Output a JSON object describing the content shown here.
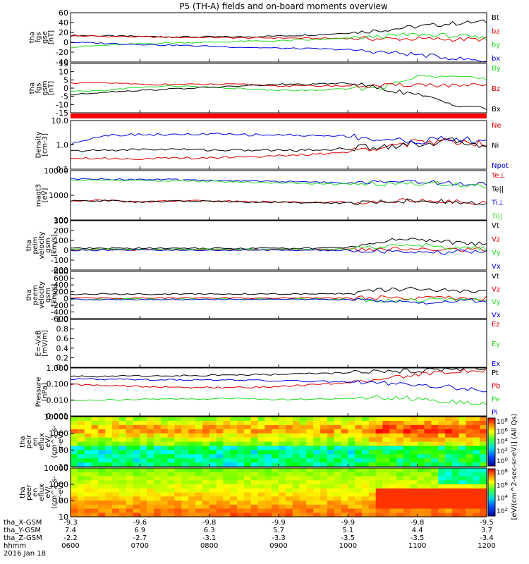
{
  "title": "P5 (TH-A) fields and on-board moments overview",
  "colors": {
    "black": "#000000",
    "red": "#dd0000",
    "green": "#22dd22",
    "blue": "#0000dd"
  },
  "time_ticks": [
    "0600",
    "0700",
    "0800",
    "0900",
    "1000",
    "1100",
    "1200"
  ],
  "date_label": "2016 Jan 18",
  "ephemeris": [
    {
      "label": "tha_X-GSM",
      "values": [
        "-9.3",
        "-9.6",
        "-9.8",
        "-9.9",
        "-9.9",
        "-9.8",
        "-9.5"
      ]
    },
    {
      "label": "tha_Y-GSM",
      "values": [
        "7.4",
        "6.9",
        "6.3",
        "5.7",
        "5.1",
        "4.4",
        "3.7"
      ]
    },
    {
      "label": "tha_Z-GSM",
      "values": [
        "-2.2",
        "-2.7",
        "-3.1",
        "-3.3",
        "-3.5",
        "-3.5",
        "-3.4"
      ]
    },
    {
      "label": "hhmm",
      "values": []
    }
  ],
  "colorbar": {
    "label": "[eV/(cm^2-sec-sr-eV)] (All Qs)",
    "ticks_top": [
      "10^8",
      "10^6",
      "10^4",
      "10^2",
      "10^0"
    ],
    "ticks_bottom": [
      "10^8",
      "10^6",
      "10^4",
      "10^2"
    ]
  },
  "chart_data": [
    {
      "type": "line",
      "ylabel": [
        "tha",
        "fgs",
        "gse",
        "[nT]"
      ],
      "ylim": [
        -40,
        60
      ],
      "yticks": [
        "60",
        "40",
        "20",
        "0",
        "-20",
        "-40"
      ],
      "legend_placement": "right",
      "series": [
        {
          "name": "Bt",
          "color": "black",
          "values": [
            14,
            13,
            12,
            11,
            11,
            11,
            13,
            15,
            19,
            25,
            32,
            38,
            42
          ]
        },
        {
          "name": "bz",
          "color": "red",
          "values": [
            13,
            12,
            11,
            10,
            10,
            9,
            9,
            8,
            8,
            7,
            7,
            6,
            6
          ]
        },
        {
          "name": "by",
          "color": "green",
          "values": [
            -10,
            -6,
            -3,
            -1,
            0,
            2,
            3,
            5,
            8,
            12,
            16,
            13,
            8
          ]
        },
        {
          "name": "bx",
          "color": "blue",
          "values": [
            0,
            -2,
            -4,
            -6,
            -8,
            -10,
            -12,
            -13,
            -15,
            -20,
            -25,
            -32,
            -38
          ]
        }
      ]
    },
    {
      "type": "line",
      "ylabel": [
        "tha",
        "fgs",
        "gsm",
        "[nT]"
      ],
      "ylim": [
        -18,
        15
      ],
      "yticks": [
        "15",
        "10",
        "5",
        "0",
        "-5",
        "-10",
        "-15"
      ],
      "legend_placement": "right",
      "series": [
        {
          "name": "By",
          "color": "green",
          "values": [
            -4,
            -3,
            -1,
            0,
            -1,
            -2,
            -3,
            -3,
            -2,
            -1,
            6,
            8,
            4
          ]
        },
        {
          "name": "Bz",
          "color": "red",
          "values": [
            2,
            2,
            1,
            1,
            1,
            1,
            0,
            0,
            0,
            0,
            1,
            0,
            0
          ]
        },
        {
          "name": "Bx",
          "color": "black",
          "values": [
            -6,
            -4,
            -3,
            -2,
            -1,
            0,
            1,
            1,
            2,
            -2,
            -6,
            -12,
            -15
          ]
        }
      ]
    },
    {
      "type": "line",
      "ylabel": [
        "Density",
        "[cm-3]"
      ],
      "ylim": [
        0.1,
        10
      ],
      "log": true,
      "yticks": [
        "10.0",
        "1.0",
        "0.1"
      ],
      "legend_placement": "right",
      "series": [
        {
          "name": "Ne",
          "color": "red",
          "values": [
            0.3,
            0.28,
            0.27,
            0.28,
            0.3,
            0.33,
            0.35,
            0.4,
            0.5,
            0.9,
            1.2,
            1.5,
            1.1
          ]
        },
        {
          "name": "Ni",
          "color": "black",
          "values": [
            0.55,
            0.6,
            0.65,
            0.66,
            0.62,
            0.6,
            0.6,
            0.62,
            0.7,
            0.9,
            1.1,
            1.4,
            1.0
          ]
        },
        {
          "name": "Npot",
          "color": "blue",
          "values": [
            1.0,
            2.5,
            2.7,
            2.6,
            2.8,
            2.6,
            2.6,
            2.4,
            2.3,
            1.6,
            1.4,
            1.8,
            1.3
          ]
        }
      ]
    },
    {
      "type": "line",
      "ylabel": [
        "magt3",
        "[eV]"
      ],
      "ylim": [
        10,
        10000
      ],
      "log": true,
      "yticks": [
        "10000",
        "1000",
        "100"
      ],
      "legend_placement": "right",
      "series": [
        {
          "name": "Te⊥",
          "color": "red",
          "values": [
            150,
            160,
            120,
            150,
            150,
            130,
            130,
            120,
            120,
            140,
            160,
            130,
            100
          ]
        },
        {
          "name": "Te||",
          "color": "black",
          "values": [
            140,
            150,
            120,
            140,
            140,
            120,
            120,
            110,
            110,
            130,
            150,
            120,
            90
          ]
        },
        {
          "name": "Ti⊥",
          "color": "blue",
          "values": [
            3000,
            3000,
            2900,
            2800,
            2600,
            2400,
            2200,
            2000,
            1800,
            2000,
            2200,
            1800,
            1400
          ]
        },
        {
          "name": "Ti||",
          "color": "green",
          "values": [
            2600,
            2600,
            2500,
            2400,
            2200,
            2000,
            1800,
            1600,
            1400,
            1600,
            1800,
            1400,
            1100
          ]
        }
      ]
    },
    {
      "type": "line",
      "ylabel": [
        "tha",
        "peim",
        "velocity",
        "gsm",
        "[km/s]"
      ],
      "ylim": [
        -200,
        300
      ],
      "yticks": [
        "300",
        "200",
        "100",
        "0",
        "-100",
        "-200"
      ],
      "legend_placement": "right",
      "series": [
        {
          "name": "Vt",
          "color": "black",
          "values": [
            20,
            20,
            20,
            20,
            20,
            20,
            20,
            20,
            30,
            90,
            120,
            80,
            60
          ]
        },
        {
          "name": "Vz",
          "color": "red",
          "values": [
            5,
            5,
            5,
            5,
            5,
            5,
            5,
            5,
            10,
            10,
            20,
            10,
            10
          ]
        },
        {
          "name": "Vy",
          "color": "green",
          "values": [
            10,
            10,
            10,
            10,
            10,
            10,
            10,
            10,
            10,
            40,
            60,
            30,
            20
          ]
        },
        {
          "name": "Vx",
          "color": "blue",
          "values": [
            0,
            0,
            0,
            0,
            0,
            0,
            0,
            0,
            0,
            -10,
            -30,
            -20,
            -10
          ]
        }
      ]
    },
    {
      "type": "line",
      "ylabel": [
        "tha",
        "peem",
        "velocity",
        "gsm",
        "[km/s]"
      ],
      "ylim": [
        -600,
        800
      ],
      "yticks": [
        "800",
        "600",
        "400",
        "200",
        "0",
        "-200",
        "-400",
        "-600"
      ],
      "legend_placement": "right",
      "series": [
        {
          "name": "Vt",
          "color": "black",
          "values": [
            120,
            130,
            130,
            130,
            130,
            130,
            130,
            130,
            150,
            250,
            280,
            220,
            180
          ]
        },
        {
          "name": "Vz",
          "color": "red",
          "values": [
            10,
            10,
            10,
            10,
            10,
            10,
            10,
            10,
            10,
            20,
            20,
            20,
            10
          ]
        },
        {
          "name": "Vy",
          "color": "green",
          "values": [
            -20,
            -20,
            -20,
            -20,
            -20,
            -20,
            -20,
            -20,
            -30,
            -60,
            -60,
            -40,
            -30
          ]
        },
        {
          "name": "Vx",
          "color": "blue",
          "values": [
            -30,
            -30,
            -30,
            -30,
            -30,
            -30,
            -30,
            -30,
            -40,
            -100,
            -120,
            -80,
            -60
          ]
        }
      ]
    },
    {
      "type": "line",
      "ylabel": [
        "E=-VxB",
        "[mV/m]"
      ],
      "ylim": [
        0,
        1
      ],
      "yticks": [
        "1.0",
        "0.8",
        "0.6",
        "0.4",
        "0.2",
        "0.0"
      ],
      "legend_placement": "right",
      "series": [
        {
          "name": "Ez",
          "color": "red",
          "values": []
        },
        {
          "name": "Ey",
          "color": "green",
          "values": []
        },
        {
          "name": "Ex",
          "color": "blue",
          "values": []
        }
      ]
    },
    {
      "type": "line",
      "ylabel": [
        "Pressure",
        "[nPa]"
      ],
      "ylim": [
        0.001,
        1
      ],
      "log": true,
      "yticks": [
        "1.000",
        "0.100",
        "0.010",
        "0.001"
      ],
      "legend_placement": "right",
      "series": [
        {
          "name": "Pt",
          "color": "black",
          "values": [
            0.3,
            0.3,
            0.32,
            0.33,
            0.35,
            0.37,
            0.4,
            0.45,
            0.5,
            0.6,
            0.7,
            0.85,
            0.95
          ]
        },
        {
          "name": "Pb",
          "color": "red",
          "values": [
            0.09,
            0.08,
            0.07,
            0.06,
            0.06,
            0.06,
            0.07,
            0.09,
            0.12,
            0.2,
            0.35,
            0.6,
            0.8
          ]
        },
        {
          "name": "Pe",
          "color": "green",
          "values": [
            0.01,
            0.01,
            0.011,
            0.012,
            0.012,
            0.012,
            0.011,
            0.011,
            0.012,
            0.015,
            0.012,
            0.008,
            0.005
          ]
        },
        {
          "name": "Pi",
          "color": "blue",
          "values": [
            0.2,
            0.2,
            0.19,
            0.18,
            0.18,
            0.17,
            0.16,
            0.15,
            0.14,
            0.12,
            0.1,
            0.06,
            0.03
          ]
        }
      ]
    },
    {
      "type": "heatmap",
      "ylabel": [
        "tha",
        "peir",
        "en",
        "eflux",
        "eV/",
        "(cm^2-s-",
        "sr-eV)"
      ],
      "ylim": [
        5,
        25000
      ],
      "log": true,
      "yticks": [
        "10000",
        "1000",
        "100",
        "10"
      ]
    },
    {
      "type": "heatmap",
      "ylabel": [
        "tha",
        "peer",
        "en",
        "eflux",
        "eV/",
        "(cm^2-s-",
        "sr-eV)"
      ],
      "ylim": [
        5,
        25000
      ],
      "log": true,
      "yticks": [
        "10000",
        "1000",
        "100",
        "10"
      ]
    }
  ]
}
